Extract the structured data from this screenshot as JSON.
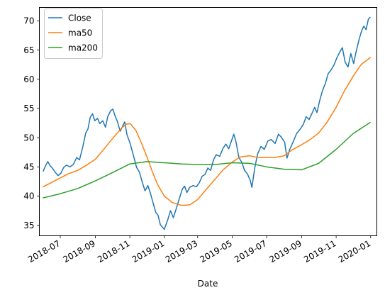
{
  "chart_data": {
    "type": "line",
    "title": "",
    "xlabel": "Date",
    "ylabel": "",
    "x_ticks": [
      "2018-07",
      "2018-09",
      "2018-11",
      "2019-01",
      "2019-03",
      "2019-05",
      "2019-07",
      "2019-09",
      "2019-11",
      "2020-01"
    ],
    "x_range": [
      "2018-05-25",
      "2020-01-12"
    ],
    "y_ticks": [
      35,
      40,
      45,
      50,
      55,
      60,
      65,
      70
    ],
    "ylim": [
      33.2,
      72.3
    ],
    "grid": false,
    "legend_position": "upper left",
    "series": [
      {
        "name": "Close",
        "color": "#1f77b4",
        "points": [
          [
            "2018-06-01",
            44.3
          ],
          [
            "2018-06-05",
            45.2
          ],
          [
            "2018-06-09",
            45.9
          ],
          [
            "2018-06-13",
            45.2
          ],
          [
            "2018-06-17",
            44.8
          ],
          [
            "2018-06-22",
            44.1
          ],
          [
            "2018-06-27",
            43.5
          ],
          [
            "2018-07-02",
            43.9
          ],
          [
            "2018-07-07",
            44.9
          ],
          [
            "2018-07-12",
            45.3
          ],
          [
            "2018-07-18",
            45.0
          ],
          [
            "2018-07-24",
            45.4
          ],
          [
            "2018-07-30",
            46.6
          ],
          [
            "2018-08-04",
            46.2
          ],
          [
            "2018-08-10",
            48.5
          ],
          [
            "2018-08-15",
            50.8
          ],
          [
            "2018-08-19",
            51.5
          ],
          [
            "2018-08-23",
            53.5
          ],
          [
            "2018-08-27",
            54.1
          ],
          [
            "2018-08-31",
            52.9
          ],
          [
            "2018-09-05",
            53.3
          ],
          [
            "2018-09-09",
            52.4
          ],
          [
            "2018-09-14",
            52.9
          ],
          [
            "2018-09-19",
            51.8
          ],
          [
            "2018-09-23",
            53.6
          ],
          [
            "2018-09-28",
            54.6
          ],
          [
            "2018-10-02",
            54.9
          ],
          [
            "2018-10-06",
            53.7
          ],
          [
            "2018-10-10",
            52.8
          ],
          [
            "2018-10-15",
            51.1
          ],
          [
            "2018-10-19",
            51.9
          ],
          [
            "2018-10-23",
            52.7
          ],
          [
            "2018-10-27",
            50.5
          ],
          [
            "2018-11-01",
            49.2
          ],
          [
            "2018-11-05",
            47.8
          ],
          [
            "2018-11-09",
            46.4
          ],
          [
            "2018-11-13",
            44.9
          ],
          [
            "2018-11-18",
            44.1
          ],
          [
            "2018-11-23",
            42.4
          ],
          [
            "2018-11-28",
            40.9
          ],
          [
            "2018-12-03",
            41.8
          ],
          [
            "2018-12-08",
            40.3
          ],
          [
            "2018-12-12",
            38.9
          ],
          [
            "2018-12-17",
            37.2
          ],
          [
            "2018-12-21",
            36.7
          ],
          [
            "2018-12-25",
            35.1
          ],
          [
            "2019-01-01",
            34.3
          ],
          [
            "2019-01-07",
            35.9
          ],
          [
            "2019-01-12",
            37.5
          ],
          [
            "2019-01-17",
            36.3
          ],
          [
            "2019-01-22",
            37.8
          ],
          [
            "2019-01-28",
            39.7
          ],
          [
            "2019-02-02",
            41.2
          ],
          [
            "2019-02-06",
            41.7
          ],
          [
            "2019-02-10",
            40.6
          ],
          [
            "2019-02-15",
            41.5
          ],
          [
            "2019-02-21",
            41.8
          ],
          [
            "2019-02-27",
            41.6
          ],
          [
            "2019-03-04",
            42.3
          ],
          [
            "2019-03-09",
            43.4
          ],
          [
            "2019-03-14",
            43.7
          ],
          [
            "2019-03-19",
            44.8
          ],
          [
            "2019-03-24",
            44.4
          ],
          [
            "2019-03-29",
            46.2
          ],
          [
            "2019-04-03",
            47.1
          ],
          [
            "2019-04-09",
            46.8
          ],
          [
            "2019-04-15",
            48.2
          ],
          [
            "2019-04-20",
            48.9
          ],
          [
            "2019-04-25",
            48.1
          ],
          [
            "2019-04-30",
            49.5
          ],
          [
            "2019-05-04",
            50.6
          ],
          [
            "2019-05-08",
            49.2
          ],
          [
            "2019-05-13",
            46.6
          ],
          [
            "2019-05-18",
            45.8
          ],
          [
            "2019-05-23",
            44.4
          ],
          [
            "2019-05-28",
            43.8
          ],
          [
            "2019-06-02",
            42.7
          ],
          [
            "2019-06-05",
            41.5
          ],
          [
            "2019-06-10",
            44.8
          ],
          [
            "2019-06-15",
            47.2
          ],
          [
            "2019-06-21",
            48.5
          ],
          [
            "2019-06-27",
            48.0
          ],
          [
            "2019-07-03",
            49.4
          ],
          [
            "2019-07-09",
            49.7
          ],
          [
            "2019-07-16",
            49.0
          ],
          [
            "2019-07-22",
            50.6
          ],
          [
            "2019-07-27",
            50.1
          ],
          [
            "2019-08-02",
            49.2
          ],
          [
            "2019-08-06",
            46.5
          ],
          [
            "2019-08-11",
            48.0
          ],
          [
            "2019-08-17",
            49.3
          ],
          [
            "2019-08-23",
            50.7
          ],
          [
            "2019-08-29",
            51.4
          ],
          [
            "2019-09-04",
            52.3
          ],
          [
            "2019-09-09",
            53.6
          ],
          [
            "2019-09-14",
            53.1
          ],
          [
            "2019-09-19",
            54.1
          ],
          [
            "2019-09-24",
            55.2
          ],
          [
            "2019-09-28",
            54.3
          ],
          [
            "2019-10-03",
            56.4
          ],
          [
            "2019-10-08",
            58.1
          ],
          [
            "2019-10-13",
            59.3
          ],
          [
            "2019-10-18",
            61.0
          ],
          [
            "2019-10-23",
            61.6
          ],
          [
            "2019-10-28",
            62.4
          ],
          [
            "2019-11-02",
            63.6
          ],
          [
            "2019-11-07",
            64.6
          ],
          [
            "2019-11-12",
            65.4
          ],
          [
            "2019-11-17",
            62.9
          ],
          [
            "2019-11-22",
            62.1
          ],
          [
            "2019-11-27",
            64.4
          ],
          [
            "2019-12-02",
            62.7
          ],
          [
            "2019-12-06",
            64.6
          ],
          [
            "2019-12-11",
            66.6
          ],
          [
            "2019-12-16",
            68.3
          ],
          [
            "2019-12-20",
            69.1
          ],
          [
            "2019-12-24",
            68.5
          ],
          [
            "2019-12-28",
            70.3
          ],
          [
            "2019-12-31",
            70.6
          ]
        ]
      },
      {
        "name": "ma50",
        "color": "#ff7f0e",
        "points": [
          [
            "2018-06-01",
            41.6
          ],
          [
            "2018-06-15",
            42.3
          ],
          [
            "2018-07-01",
            43.1
          ],
          [
            "2018-07-15",
            43.8
          ],
          [
            "2018-08-01",
            44.4
          ],
          [
            "2018-08-15",
            45.2
          ],
          [
            "2018-09-01",
            46.3
          ],
          [
            "2018-09-15",
            47.9
          ],
          [
            "2018-10-01",
            49.8
          ],
          [
            "2018-10-15",
            51.4
          ],
          [
            "2018-10-25",
            52.3
          ],
          [
            "2018-11-02",
            52.4
          ],
          [
            "2018-11-12",
            51.2
          ],
          [
            "2018-11-22",
            49.0
          ],
          [
            "2018-12-01",
            46.8
          ],
          [
            "2018-12-10",
            44.4
          ],
          [
            "2018-12-20",
            42.0
          ],
          [
            "2019-01-01",
            40.0
          ],
          [
            "2019-01-15",
            38.9
          ],
          [
            "2019-02-01",
            38.4
          ],
          [
            "2019-02-15",
            38.5
          ],
          [
            "2019-03-01",
            39.4
          ],
          [
            "2019-03-15",
            41.0
          ],
          [
            "2019-04-01",
            42.9
          ],
          [
            "2019-04-15",
            44.5
          ],
          [
            "2019-05-01",
            45.8
          ],
          [
            "2019-05-15",
            46.7
          ],
          [
            "2019-06-01",
            46.9
          ],
          [
            "2019-06-15",
            46.6
          ],
          [
            "2019-07-01",
            46.6
          ],
          [
            "2019-07-15",
            46.6
          ],
          [
            "2019-08-01",
            46.9
          ],
          [
            "2019-08-15",
            47.9
          ],
          [
            "2019-09-01",
            48.8
          ],
          [
            "2019-09-15",
            49.6
          ],
          [
            "2019-10-01",
            50.8
          ],
          [
            "2019-10-15",
            52.5
          ],
          [
            "2019-11-01",
            55.2
          ],
          [
            "2019-11-15",
            57.9
          ],
          [
            "2019-12-01",
            60.5
          ],
          [
            "2019-12-15",
            62.5
          ],
          [
            "2019-12-31",
            63.7
          ]
        ]
      },
      {
        "name": "ma200",
        "color": "#2ca02c",
        "points": [
          [
            "2018-06-01",
            39.7
          ],
          [
            "2018-07-01",
            40.4
          ],
          [
            "2018-08-01",
            41.3
          ],
          [
            "2018-09-01",
            42.6
          ],
          [
            "2018-10-01",
            44.0
          ],
          [
            "2018-11-01",
            45.5
          ],
          [
            "2018-12-01",
            45.9
          ],
          [
            "2019-01-01",
            45.7
          ],
          [
            "2019-02-01",
            45.5
          ],
          [
            "2019-03-01",
            45.4
          ],
          [
            "2019-04-01",
            45.4
          ],
          [
            "2019-05-01",
            45.7
          ],
          [
            "2019-06-01",
            45.6
          ],
          [
            "2019-07-01",
            45.0
          ],
          [
            "2019-08-01",
            44.6
          ],
          [
            "2019-09-01",
            44.5
          ],
          [
            "2019-10-01",
            45.6
          ],
          [
            "2019-11-01",
            48.0
          ],
          [
            "2019-12-01",
            50.7
          ],
          [
            "2019-12-31",
            52.6
          ]
        ]
      }
    ]
  }
}
